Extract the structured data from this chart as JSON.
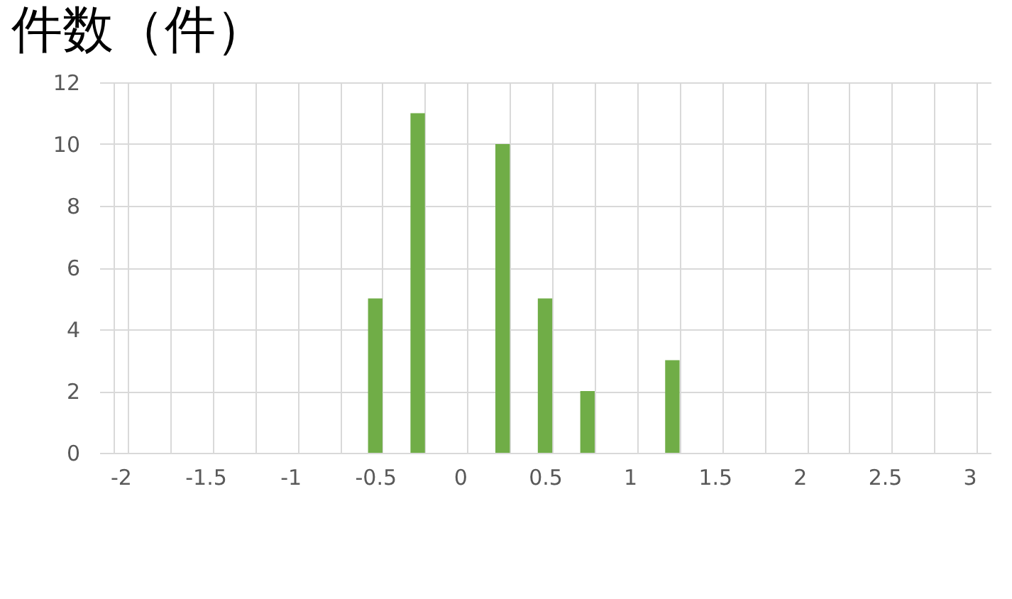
{
  "chart_data": {
    "type": "bar",
    "title": "件数（件）",
    "categories": [
      "-2",
      null,
      "-1.5",
      null,
      "-1",
      null,
      "-0.5",
      null,
      "0",
      null,
      "0.5",
      null,
      "1",
      null,
      "1.5",
      null,
      "2",
      null,
      "2.5",
      null,
      "3"
    ],
    "values": [
      0,
      0,
      0,
      0,
      0,
      0,
      5,
      11,
      0,
      10,
      5,
      2,
      0,
      3,
      0,
      0,
      0,
      0,
      0,
      0,
      0
    ],
    "color": "#70ad47",
    "ylim": [
      0,
      12
    ],
    "yticks": [
      0,
      2,
      4,
      6,
      8,
      10,
      12
    ],
    "grid": true
  }
}
